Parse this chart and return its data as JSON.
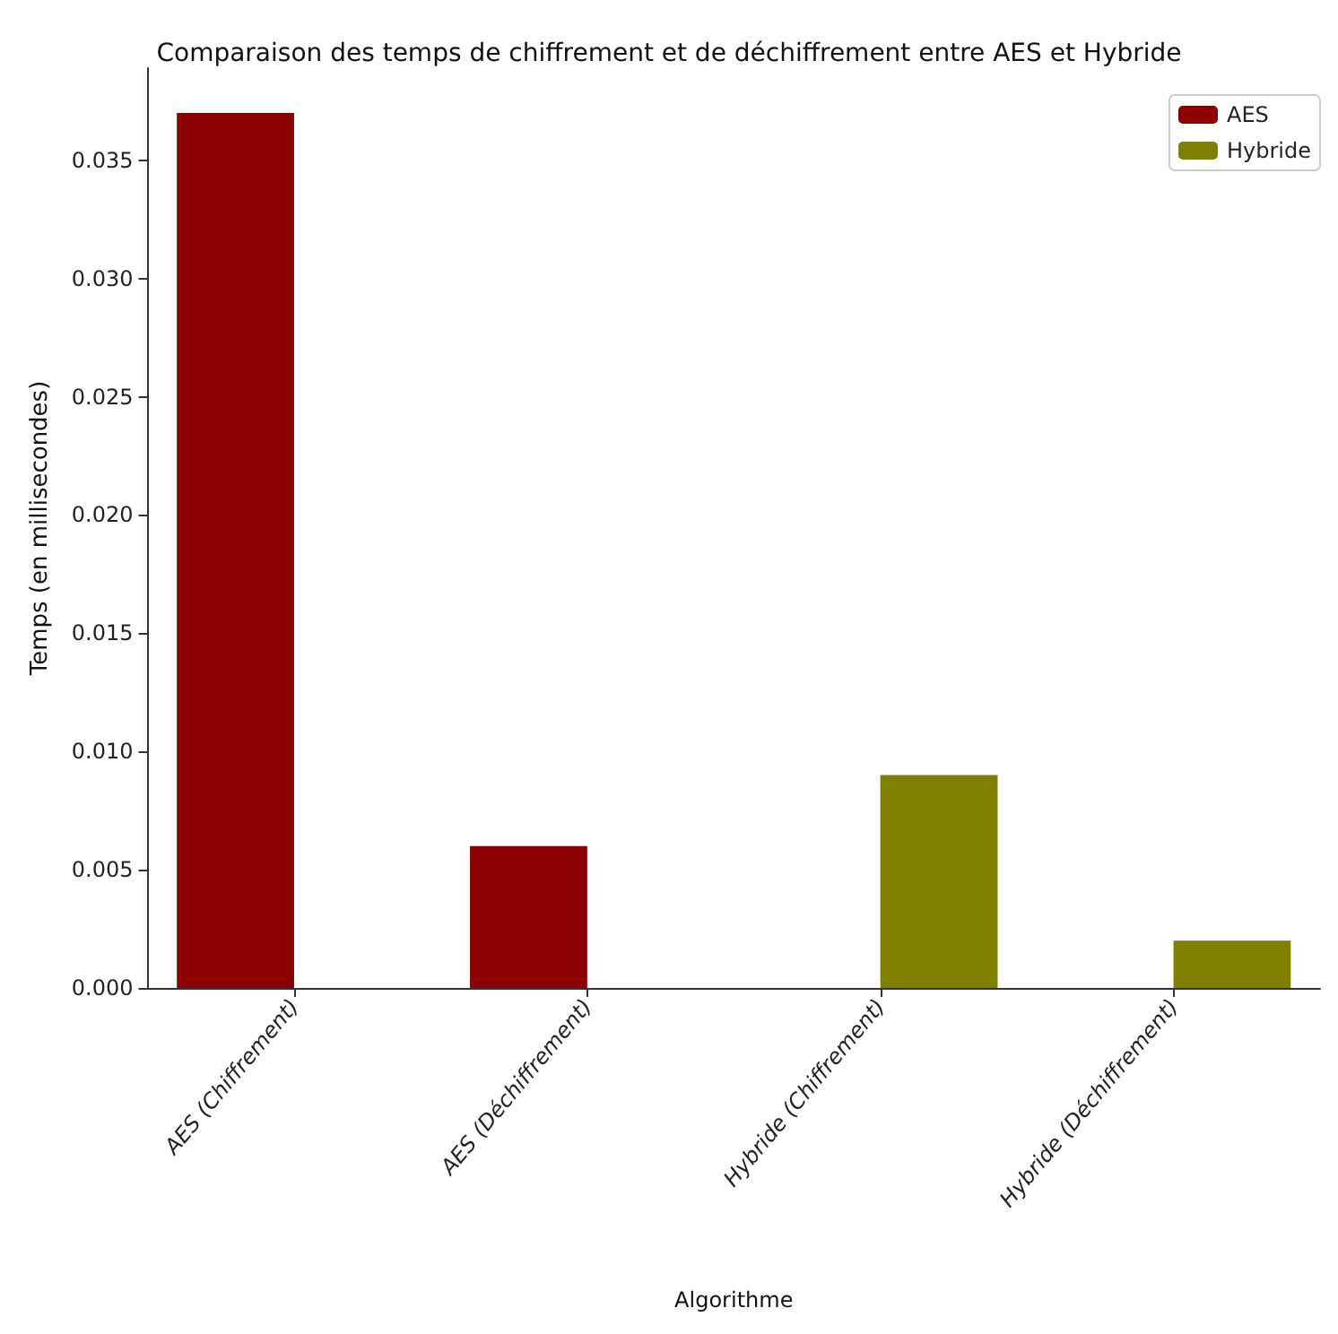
{
  "chart_data": {
    "type": "bar",
    "title": "Comparaison des temps de chiffrement et de déchiffrement entre AES et Hybride",
    "xlabel": "Algorithme",
    "ylabel": "Temps (en millisecondes)",
    "categories": [
      "AES (Chiffrement)",
      "AES (Déchiffrement)",
      "Hybride (Chiffrement)",
      "Hybride (Déchiffrement)"
    ],
    "series": [
      {
        "name": "AES",
        "color": "#8b0000",
        "values": [
          0.037,
          0.006,
          null,
          null
        ]
      },
      {
        "name": "Hybride",
        "color": "#808000",
        "values": [
          null,
          null,
          0.009,
          0.002
        ]
      }
    ],
    "ylim": [
      0,
      0.0389
    ],
    "yticks": [
      {
        "value": 0,
        "label": "0.000"
      },
      {
        "value": 0.005,
        "label": "0.005"
      },
      {
        "value": 0.01,
        "label": "0.010"
      },
      {
        "value": 0.015,
        "label": "0.015"
      },
      {
        "value": 0.02,
        "label": "0.020"
      },
      {
        "value": 0.025,
        "label": "0.025"
      },
      {
        "value": 0.03,
        "label": "0.030"
      },
      {
        "value": 0.035,
        "label": "0.035"
      }
    ],
    "grid": false,
    "legend": "top right"
  }
}
